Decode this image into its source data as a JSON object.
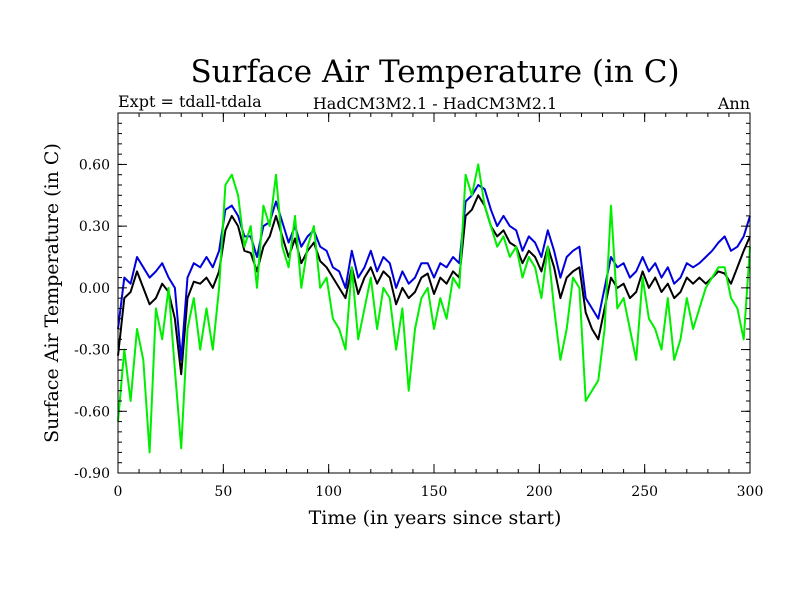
{
  "chart_data": {
    "type": "line",
    "title": "Surface Air Temperature (in C)",
    "subtitle_left": "Expt = tdall-tdala",
    "subtitle_center": "HadCM3M2.1 - HadCM3M2.1",
    "subtitle_right": "Ann",
    "xlabel": "Time (in years since start)",
    "ylabel": "Surface Air Temperature (in C)",
    "xlim": [
      0,
      300
    ],
    "ylim": [
      -0.9,
      0.85
    ],
    "x_ticks": [
      0,
      50,
      100,
      150,
      200,
      250,
      300
    ],
    "x_tick_labels": [
      "0",
      "50",
      "100",
      "150",
      "200",
      "250",
      "300"
    ],
    "y_ticks": [
      -0.9,
      -0.6,
      -0.3,
      0.0,
      0.3,
      0.6
    ],
    "y_tick_labels": [
      "-0.90",
      "-0.60",
      "-0.30",
      "0.00",
      "0.30",
      "0.60"
    ],
    "grid": false,
    "x_step": 3,
    "series": [
      {
        "name": "black",
        "color": "#000000",
        "values": [
          -0.33,
          -0.05,
          -0.02,
          0.08,
          0.0,
          -0.08,
          -0.05,
          0.02,
          -0.02,
          -0.15,
          -0.42,
          -0.05,
          0.03,
          0.02,
          0.05,
          0.0,
          0.08,
          0.28,
          0.35,
          0.3,
          0.18,
          0.17,
          0.08,
          0.2,
          0.25,
          0.35,
          0.25,
          0.15,
          0.24,
          0.12,
          0.18,
          0.22,
          0.13,
          0.1,
          0.05,
          0.0,
          -0.05,
          0.1,
          -0.03,
          0.05,
          0.1,
          0.02,
          0.08,
          0.05,
          -0.08,
          0.0,
          -0.05,
          -0.02,
          0.05,
          0.07,
          -0.03,
          0.05,
          0.02,
          0.08,
          0.05,
          0.35,
          0.38,
          0.45,
          0.4,
          0.3,
          0.25,
          0.28,
          0.22,
          0.2,
          0.12,
          0.18,
          0.15,
          0.08,
          0.2,
          0.1,
          -0.05,
          0.05,
          0.08,
          0.1,
          -0.12,
          -0.2,
          -0.25,
          -0.1,
          0.05,
          0.0,
          0.02,
          -0.05,
          -0.02,
          0.08,
          0.0,
          0.05,
          -0.02,
          0.02,
          -0.05,
          -0.02,
          0.05,
          0.02,
          0.05,
          0.02,
          0.05,
          0.08,
          0.07,
          0.02,
          0.1,
          0.18,
          0.25
        ]
      },
      {
        "name": "blue",
        "color": "#0000dd",
        "values": [
          -0.2,
          0.05,
          0.02,
          0.15,
          0.1,
          0.05,
          0.08,
          0.12,
          0.05,
          0.0,
          -0.35,
          0.05,
          0.12,
          0.1,
          0.15,
          0.1,
          0.18,
          0.38,
          0.4,
          0.35,
          0.25,
          0.25,
          0.15,
          0.3,
          0.32,
          0.42,
          0.32,
          0.22,
          0.3,
          0.2,
          0.25,
          0.28,
          0.2,
          0.18,
          0.1,
          0.08,
          0.0,
          0.18,
          0.05,
          0.1,
          0.18,
          0.08,
          0.15,
          0.12,
          0.0,
          0.08,
          0.02,
          0.05,
          0.12,
          0.12,
          0.05,
          0.12,
          0.1,
          0.15,
          0.12,
          0.42,
          0.45,
          0.5,
          0.48,
          0.38,
          0.3,
          0.35,
          0.3,
          0.28,
          0.18,
          0.25,
          0.22,
          0.15,
          0.28,
          0.18,
          0.05,
          0.15,
          0.18,
          0.2,
          -0.05,
          -0.1,
          -0.15,
          0.0,
          0.15,
          0.1,
          0.12,
          0.05,
          0.08,
          0.15,
          0.08,
          0.12,
          0.05,
          0.1,
          0.02,
          0.05,
          0.12,
          0.1,
          0.12,
          0.15,
          0.18,
          0.22,
          0.25,
          0.18,
          0.2,
          0.25,
          0.35
        ]
      },
      {
        "name": "green",
        "color": "#00ee00",
        "values": [
          -0.65,
          -0.3,
          -0.55,
          -0.2,
          -0.35,
          -0.8,
          -0.1,
          -0.25,
          0.0,
          -0.4,
          -0.78,
          -0.2,
          -0.05,
          -0.3,
          -0.1,
          -0.3,
          0.0,
          0.5,
          0.55,
          0.45,
          0.2,
          0.3,
          0.0,
          0.4,
          0.3,
          0.55,
          0.2,
          0.1,
          0.35,
          0.0,
          0.2,
          0.3,
          0.0,
          0.05,
          -0.15,
          -0.2,
          -0.3,
          0.1,
          -0.25,
          -0.1,
          0.05,
          -0.2,
          0.0,
          -0.05,
          -0.3,
          -0.1,
          -0.5,
          -0.2,
          -0.05,
          0.0,
          -0.2,
          -0.05,
          -0.15,
          0.05,
          0.0,
          0.55,
          0.45,
          0.6,
          0.4,
          0.3,
          0.2,
          0.25,
          0.15,
          0.2,
          0.05,
          0.15,
          0.1,
          -0.05,
          0.2,
          -0.1,
          -0.35,
          -0.2,
          0.05,
          0.0,
          -0.55,
          -0.5,
          -0.45,
          -0.2,
          0.4,
          -0.1,
          -0.05,
          -0.2,
          -0.35,
          0.05,
          -0.15,
          -0.2,
          -0.3,
          -0.05,
          -0.35,
          -0.25,
          -0.05,
          -0.2,
          -0.1,
          0.0,
          0.05,
          0.1,
          0.1,
          -0.05,
          -0.1,
          -0.25,
          0.2
        ]
      }
    ]
  }
}
